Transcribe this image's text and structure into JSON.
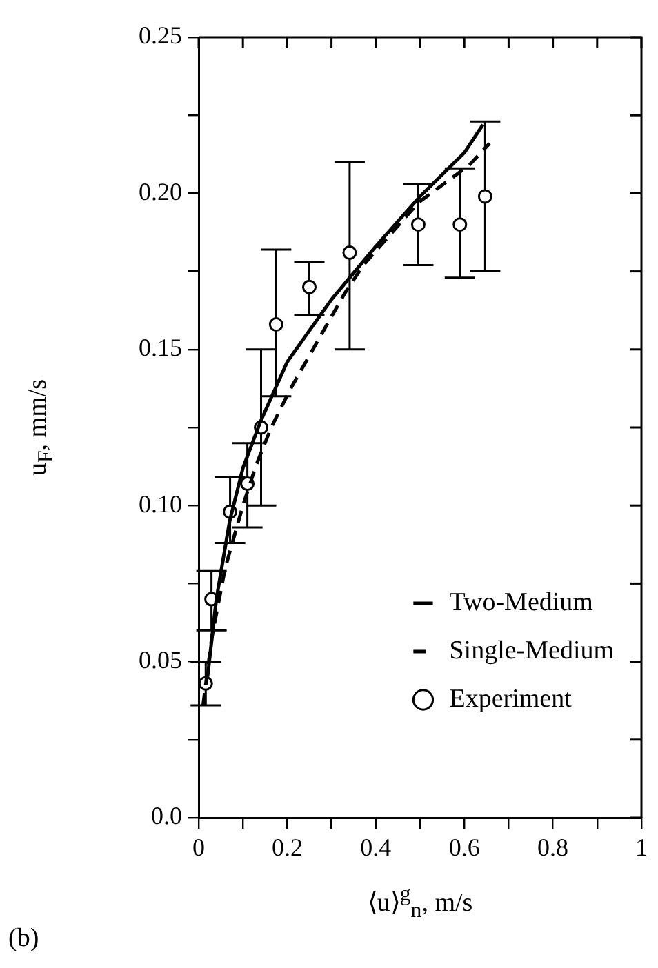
{
  "chart_data": {
    "type": "line",
    "xlabel": "⟨u⟩$^{g}$$_{n}$, m/s",
    "ylabel": "u$_{F}$, mm/s",
    "xlim": [
      0,
      1
    ],
    "ylim": [
      0,
      0.25
    ],
    "xticks": [
      0,
      {
        "value": 0.1,
        "label": null
      },
      0.2,
      {
        "value": 0.3,
        "label": null
      },
      0.4,
      {
        "value": 0.5,
        "label": null
      },
      0.6,
      {
        "value": 0.7,
        "label": null
      },
      0.8,
      {
        "value": 0.9,
        "label": null
      },
      1
    ],
    "yticks": [
      {
        "value": 0,
        "label": "0.0"
      },
      {
        "value": 0.025,
        "label": null
      },
      0.05,
      {
        "value": 0.075,
        "label": null
      },
      {
        "value": 0.1,
        "label": "0.10"
      },
      {
        "value": 0.125,
        "label": null
      },
      0.15,
      {
        "value": 0.175,
        "label": null
      },
      {
        "value": 0.2,
        "label": "0.20"
      },
      {
        "value": 0.225,
        "label": null
      },
      0.25
    ],
    "grid": false,
    "legend": "bottom right",
    "annotations": [
      "(b)"
    ],
    "series": [
      {
        "name": "Two-Medium",
        "type": "line",
        "color": "#000000",
        "line_style": "solid",
        "marker": "none",
        "x": [
          0.02,
          0.04,
          0.07,
          0.1,
          0.14,
          0.2,
          0.3,
          0.4,
          0.5,
          0.6,
          0.642
        ],
        "values": [
          0.045,
          0.07,
          0.095,
          0.112,
          0.127,
          0.146,
          0.166,
          0.183,
          0.199,
          0.213,
          0.222
        ]
      },
      {
        "name": "Single-Medium",
        "type": "line",
        "color": "#000000",
        "line_style": "dashed",
        "marker": "none",
        "x": [
          0.01,
          0.03,
          0.06,
          0.1,
          0.13,
          0.164,
          0.206,
          0.33,
          0.372,
          0.496,
          0.611,
          0.657
        ],
        "values": [
          0.036,
          0.058,
          0.08,
          0.1,
          0.113,
          0.125,
          0.137,
          0.168,
          0.177,
          0.197,
          0.209,
          0.216
        ]
      },
      {
        "name": "Experiment",
        "type": "scatter",
        "color": "#000000",
        "marker": "circle",
        "x": [
          0.016,
          0.029,
          0.071,
          0.11,
          0.141,
          0.175,
          0.25,
          0.341,
          0.496,
          0.59,
          0.647
        ],
        "values": [
          0.043,
          0.07,
          0.098,
          0.107,
          0.125,
          0.158,
          0.17,
          0.181,
          0.19,
          0.19,
          0.199
        ],
        "errors": [
          [
            0.036,
            0.05
          ],
          [
            0.06,
            0.079
          ],
          [
            0.088,
            0.109
          ],
          [
            0.093,
            0.12
          ],
          [
            0.1,
            0.15
          ],
          [
            0.135,
            0.182
          ],
          [
            0.161,
            0.178
          ],
          [
            0.15,
            0.21
          ],
          [
            0.177,
            0.203
          ],
          [
            0.173,
            0.208
          ],
          [
            0.175,
            0.223
          ]
        ]
      }
    ]
  }
}
